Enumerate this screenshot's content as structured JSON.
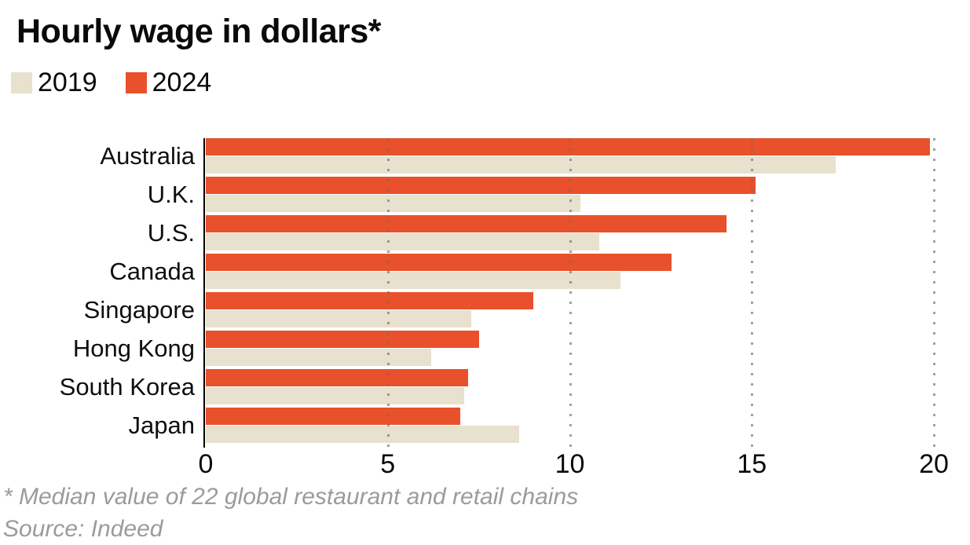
{
  "chart": {
    "title": "Hourly wage in dollars*",
    "footnote": "* Median value of 22 global restaurant and retail chains",
    "source": "Source: Indeed"
  },
  "chart_data": {
    "type": "bar",
    "orientation": "horizontal",
    "title": "Hourly wage in dollars*",
    "categories": [
      "Australia",
      "U.K.",
      "U.S.",
      "Canada",
      "Singapore",
      "Hong Kong",
      "South Korea",
      "Japan"
    ],
    "series": [
      {
        "name": "2019",
        "color": "#e7e1cd",
        "values": [
          17.3,
          10.3,
          10.8,
          11.4,
          7.3,
          6.2,
          7.1,
          8.6
        ]
      },
      {
        "name": "2024",
        "color": "#e8512b",
        "values": [
          19.9,
          15.1,
          14.3,
          12.8,
          9.0,
          7.5,
          7.2,
          7.0
        ]
      }
    ],
    "bar_order": [
      "2024",
      "2019"
    ],
    "xlim": [
      0,
      20
    ],
    "x_ticks": [
      0,
      5,
      10,
      15,
      20
    ],
    "grid": "dotted vertical gridlines drawn over bars",
    "legend_position": "top-left",
    "axis_line_color": "#000000",
    "footnote": "* Median value of 22 global restaurant and retail chains",
    "source": "Source: Indeed"
  }
}
